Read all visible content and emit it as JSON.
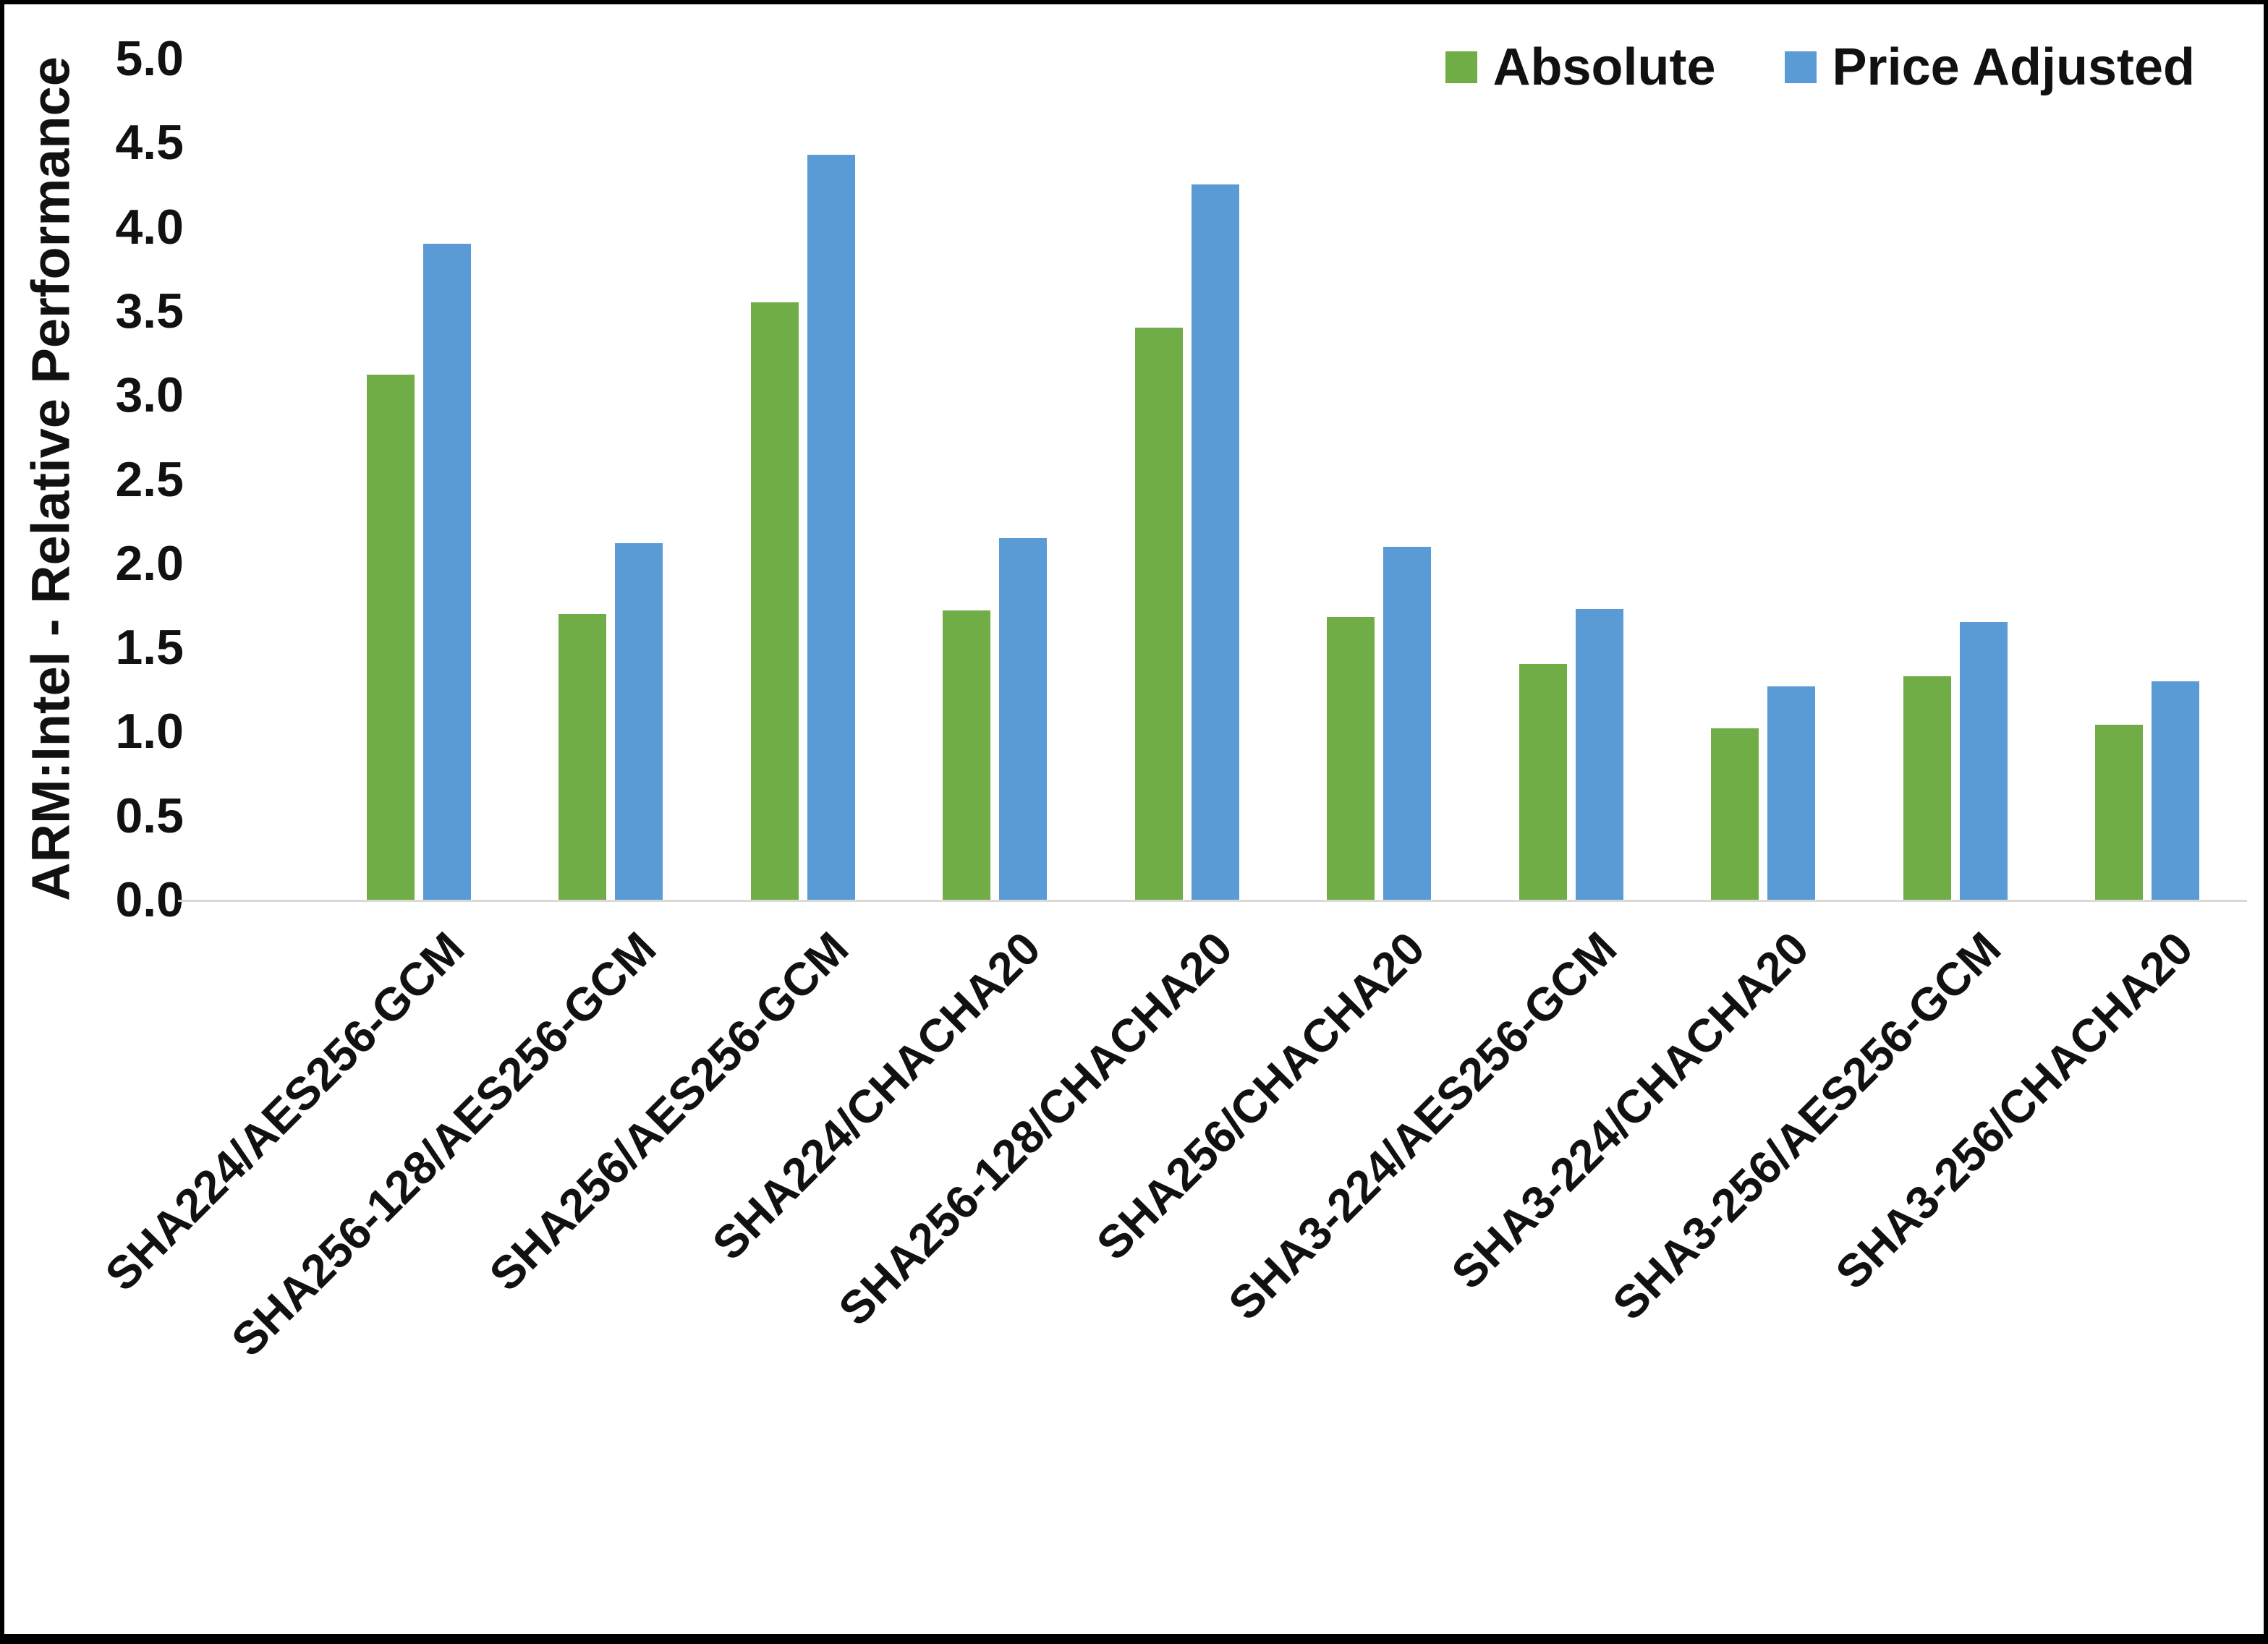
{
  "chart_data": {
    "type": "bar",
    "title": "",
    "xlabel": "",
    "ylabel": "ARM:Intel - Relative Performance",
    "ylim": [
      0,
      5
    ],
    "ytick_step": 0.5,
    "grid": false,
    "legend_position": "top-right",
    "text_color": "#111111",
    "axis_line_color": "#d9d9d9",
    "categories": [
      "SHA224/AES256-GCM",
      "SHA256-128/AES256-GCM",
      "SHA256/AES256-GCM",
      "SHA224/CHACHA20",
      "SHA256-128/CHACHA20",
      "SHA256/CHACHA20",
      "SHA3-224/AES256-GCM",
      "SHA3-224/CHACHA20",
      "SHA3-256/AES256-GCM",
      "SHA3-256/CHACHA20"
    ],
    "series": [
      {
        "name": "Absolute",
        "color": "#70AD47",
        "values": [
          3.12,
          1.7,
          3.55,
          1.72,
          3.4,
          1.68,
          1.4,
          1.02,
          1.33,
          1.04
        ]
      },
      {
        "name": "Price Adjusted",
        "color": "#5B9BD5",
        "values": [
          3.9,
          2.12,
          4.43,
          2.15,
          4.25,
          2.1,
          1.73,
          1.27,
          1.65,
          1.3
        ]
      }
    ]
  }
}
